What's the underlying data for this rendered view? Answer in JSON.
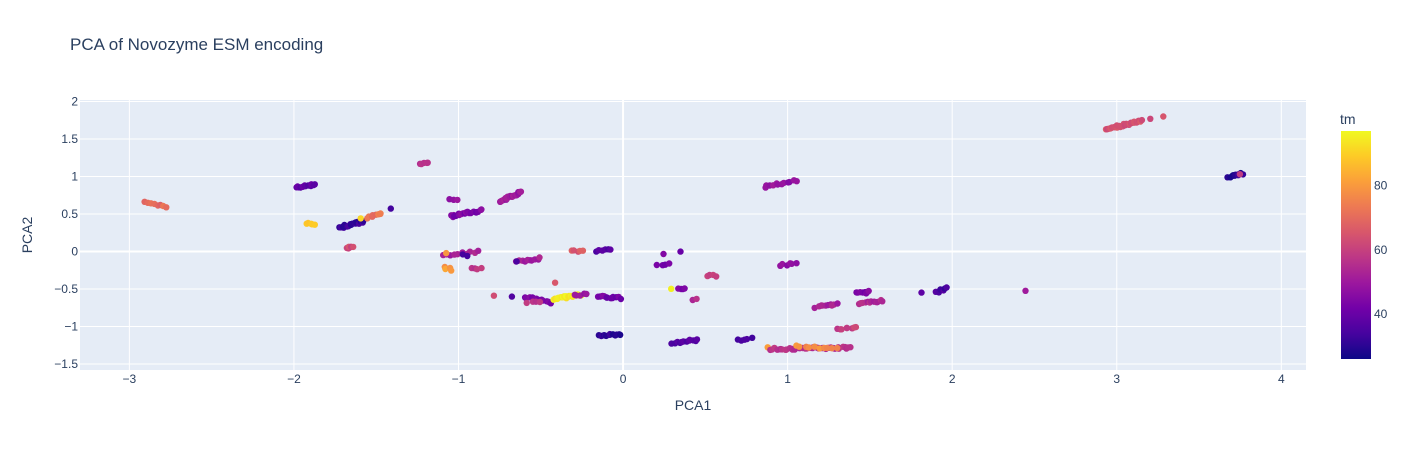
{
  "chart_data": {
    "type": "scatter",
    "title": "PCA of Novozyme ESM encoding",
    "xlabel": "PCA1",
    "ylabel": "PCA2",
    "xlim": [
      -3.3,
      4.15
    ],
    "ylim": [
      -1.58,
      2.02
    ],
    "x_ticks": [
      -3,
      -2,
      -1,
      0,
      1,
      2,
      3,
      4
    ],
    "x_tick_labels": [
      "−3",
      "−2",
      "−1",
      "0",
      "1",
      "2",
      "3",
      "4"
    ],
    "y_ticks": [
      -1.5,
      -1,
      -0.5,
      0,
      0.5,
      1,
      1.5,
      2
    ],
    "y_tick_labels": [
      "−1.5",
      "−1",
      "−0.5",
      "0",
      "0.5",
      "1",
      "1.5",
      "2"
    ],
    "grid": true,
    "plot_background": "#e5ecf6",
    "colorbar": {
      "title": "tm",
      "range": [
        26,
        97
      ],
      "ticks": [
        40,
        60,
        80
      ],
      "colorscale": [
        "#0d0887",
        "#46039f",
        "#7201a8",
        "#9c179e",
        "#bd3786",
        "#d8576b",
        "#ed7953",
        "#fb9f3a",
        "#fdca26",
        "#f0f921"
      ]
    },
    "clusters": [
      {
        "x0": -2.9,
        "x1": -2.78,
        "y0": 0.65,
        "y1": 0.6,
        "n": 8,
        "tm": 70
      },
      {
        "x0": -1.99,
        "x1": -1.87,
        "y0": 0.85,
        "y1": 0.9,
        "n": 12,
        "tm": 38
      },
      {
        "x0": -1.92,
        "x1": -1.88,
        "y0": 0.37,
        "y1": 0.36,
        "n": 5,
        "tm": 88
      },
      {
        "x0": -1.72,
        "x1": -1.58,
        "y0": 0.32,
        "y1": 0.4,
        "n": 18,
        "tm": 32
      },
      {
        "x0": -1.55,
        "x1": -1.47,
        "y0": 0.45,
        "y1": 0.5,
        "n": 8,
        "tm": 72
      },
      {
        "x0": -1.41,
        "x1": -1.41,
        "y0": 0.58,
        "y1": 0.58,
        "n": 1,
        "tm": 34
      },
      {
        "x0": -1.6,
        "x1": -1.6,
        "y0": 0.44,
        "y1": 0.44,
        "n": 1,
        "tm": 92
      },
      {
        "x0": -1.68,
        "x1": -1.64,
        "y0": 0.04,
        "y1": 0.06,
        "n": 6,
        "tm": 62
      },
      {
        "x0": -1.24,
        "x1": -1.18,
        "y0": 1.17,
        "y1": 1.19,
        "n": 5,
        "tm": 56
      },
      {
        "x0": -1.05,
        "x1": -1.0,
        "y0": 0.69,
        "y1": 0.68,
        "n": 3,
        "tm": 48
      },
      {
        "x0": -1.05,
        "x1": -0.86,
        "y0": 0.47,
        "y1": 0.55,
        "n": 20,
        "tm": 44
      },
      {
        "x0": -0.75,
        "x1": -0.62,
        "y0": 0.66,
        "y1": 0.8,
        "n": 25,
        "tm": 50
      },
      {
        "x0": -1.1,
        "x1": -0.88,
        "y0": -0.05,
        "y1": 0.0,
        "n": 10,
        "tm": 52
      },
      {
        "x0": -1.08,
        "x1": -1.08,
        "y0": -0.03,
        "y1": -0.03,
        "n": 1,
        "tm": 78
      },
      {
        "x0": -0.98,
        "x1": -0.95,
        "y0": -0.05,
        "y1": -0.05,
        "n": 2,
        "tm": 36
      },
      {
        "x0": -1.09,
        "x1": -1.04,
        "y0": -0.22,
        "y1": -0.24,
        "n": 4,
        "tm": 80
      },
      {
        "x0": -0.92,
        "x1": -0.86,
        "y0": -0.21,
        "y1": -0.23,
        "n": 4,
        "tm": 58
      },
      {
        "x0": -0.65,
        "x1": -0.5,
        "y0": -0.14,
        "y1": -0.09,
        "n": 10,
        "tm": 52
      },
      {
        "x0": -0.64,
        "x1": -0.64,
        "y0": -0.14,
        "y1": -0.14,
        "n": 1,
        "tm": 36
      },
      {
        "x0": -0.31,
        "x1": -0.24,
        "y0": 0.0,
        "y1": 0.0,
        "n": 5,
        "tm": 66
      },
      {
        "x0": -0.16,
        "x1": -0.08,
        "y0": 0.0,
        "y1": 0.03,
        "n": 6,
        "tm": 36
      },
      {
        "x0": -0.78,
        "x1": -0.78,
        "y0": -0.6,
        "y1": -0.6,
        "n": 1,
        "tm": 62
      },
      {
        "x0": -0.68,
        "x1": -0.68,
        "y0": -0.6,
        "y1": -0.6,
        "n": 1,
        "tm": 34
      },
      {
        "x0": -0.6,
        "x1": -0.44,
        "y0": -0.6,
        "y1": -0.68,
        "n": 12,
        "tm": 44
      },
      {
        "x0": -0.58,
        "x1": -0.5,
        "y0": -0.68,
        "y1": -0.66,
        "n": 4,
        "tm": 58
      },
      {
        "x0": -0.42,
        "x1": -0.26,
        "y0": -0.63,
        "y1": -0.58,
        "n": 22,
        "tm": 95
      },
      {
        "x0": -0.3,
        "x1": -0.22,
        "y0": -0.58,
        "y1": -0.57,
        "n": 5,
        "tm": 50
      },
      {
        "x0": -0.41,
        "x1": -0.41,
        "y0": -0.41,
        "y1": -0.41,
        "n": 1,
        "tm": 68
      },
      {
        "x0": -0.15,
        "x1": -0.02,
        "y0": -0.6,
        "y1": -0.62,
        "n": 12,
        "tm": 42
      },
      {
        "x0": -0.14,
        "x1": -0.02,
        "y0": -1.13,
        "y1": -1.1,
        "n": 12,
        "tm": 30
      },
      {
        "x0": 0.21,
        "x1": 0.28,
        "y0": -0.19,
        "y1": -0.17,
        "n": 4,
        "tm": 44
      },
      {
        "x0": 0.25,
        "x1": 0.25,
        "y0": -0.02,
        "y1": -0.02,
        "n": 1,
        "tm": 44
      },
      {
        "x0": 0.35,
        "x1": 0.35,
        "y0": 0.01,
        "y1": 0.01,
        "n": 1,
        "tm": 38
      },
      {
        "x0": 0.3,
        "x1": 0.3,
        "y0": -0.51,
        "y1": -0.51,
        "n": 1,
        "tm": 94
      },
      {
        "x0": 0.33,
        "x1": 0.38,
        "y0": -0.5,
        "y1": -0.48,
        "n": 4,
        "tm": 44
      },
      {
        "x0": 0.3,
        "x1": 0.45,
        "y0": -1.22,
        "y1": -1.18,
        "n": 12,
        "tm": 36
      },
      {
        "x0": 0.42,
        "x1": 0.45,
        "y0": -0.65,
        "y1": -0.64,
        "n": 2,
        "tm": 56
      },
      {
        "x0": 0.52,
        "x1": 0.56,
        "y0": -0.33,
        "y1": -0.32,
        "n": 4,
        "tm": 58
      },
      {
        "x0": 0.7,
        "x1": 0.78,
        "y0": -1.18,
        "y1": -1.16,
        "n": 5,
        "tm": 36
      },
      {
        "x0": 0.88,
        "x1": 0.88,
        "y0": -1.28,
        "y1": -1.28,
        "n": 1,
        "tm": 80
      },
      {
        "x0": 0.9,
        "x1": 1.38,
        "y0": -1.3,
        "y1": -1.28,
        "n": 40,
        "tm": 56
      },
      {
        "x0": 1.05,
        "x1": 1.3,
        "y0": -1.25,
        "y1": -1.3,
        "n": 10,
        "tm": 78
      },
      {
        "x0": 0.86,
        "x1": 1.05,
        "y0": 0.86,
        "y1": 0.95,
        "n": 12,
        "tm": 48
      },
      {
        "x0": 0.95,
        "x1": 1.05,
        "y0": -0.18,
        "y1": -0.16,
        "n": 6,
        "tm": 48
      },
      {
        "x0": 1.17,
        "x1": 1.3,
        "y0": -0.74,
        "y1": -0.7,
        "n": 10,
        "tm": 52
      },
      {
        "x0": 1.3,
        "x1": 1.42,
        "y0": -1.04,
        "y1": -1.0,
        "n": 8,
        "tm": 60
      },
      {
        "x0": 1.42,
        "x1": 1.5,
        "y0": -0.56,
        "y1": -0.54,
        "n": 8,
        "tm": 44
      },
      {
        "x0": 1.43,
        "x1": 1.58,
        "y0": -0.7,
        "y1": -0.65,
        "n": 12,
        "tm": 54
      },
      {
        "x0": 1.82,
        "x1": 1.82,
        "y0": -0.56,
        "y1": -0.56,
        "n": 1,
        "tm": 36
      },
      {
        "x0": 1.9,
        "x1": 1.97,
        "y0": -0.55,
        "y1": -0.48,
        "n": 6,
        "tm": 34
      },
      {
        "x0": 2.44,
        "x1": 2.44,
        "y0": -0.52,
        "y1": -0.52,
        "n": 1,
        "tm": 50
      },
      {
        "x0": 2.93,
        "x1": 3.15,
        "y0": 1.63,
        "y1": 1.74,
        "n": 30,
        "tm": 64
      },
      {
        "x0": 3.2,
        "x1": 3.28,
        "y0": 1.76,
        "y1": 1.79,
        "n": 2,
        "tm": 64
      },
      {
        "x0": 3.68,
        "x1": 3.76,
        "y0": 1.0,
        "y1": 1.04,
        "n": 10,
        "tm": 30
      },
      {
        "x0": 3.75,
        "x1": 3.75,
        "y0": 1.04,
        "y1": 1.04,
        "n": 1,
        "tm": 58
      }
    ]
  }
}
